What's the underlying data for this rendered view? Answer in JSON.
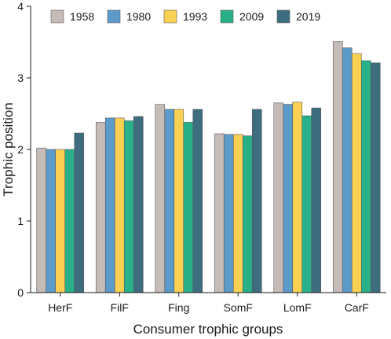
{
  "chart_data": {
    "type": "bar",
    "categories": [
      "HerF",
      "FilF",
      "Fing",
      "SomF",
      "LomF",
      "CarF"
    ],
    "series": [
      {
        "name": "1958",
        "color": "#c5bcb8",
        "values": [
          2.02,
          2.38,
          2.63,
          2.22,
          2.65,
          3.51
        ]
      },
      {
        "name": "1980",
        "color": "#5c9ac9",
        "values": [
          2.0,
          2.44,
          2.56,
          2.21,
          2.63,
          3.42
        ]
      },
      {
        "name": "1993",
        "color": "#fad153",
        "values": [
          2.0,
          2.44,
          2.56,
          2.21,
          2.66,
          3.34
        ]
      },
      {
        "name": "2009",
        "color": "#28b088",
        "values": [
          2.0,
          2.4,
          2.38,
          2.19,
          2.47,
          3.24
        ]
      },
      {
        "name": "2019",
        "color": "#3d6d7f",
        "values": [
          2.23,
          2.46,
          2.56,
          2.56,
          2.58,
          3.21
        ]
      }
    ],
    "xlabel": "Consumer trophic groups",
    "ylabel": "Trophic position",
    "ylim": [
      0,
      4
    ],
    "yticks": [
      "0",
      "1",
      "2",
      "3",
      "4"
    ],
    "grid": false,
    "legend": "top-left, horizontal"
  }
}
